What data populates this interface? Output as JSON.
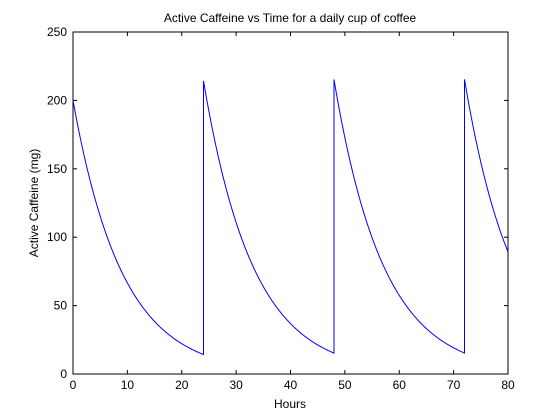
{
  "chart_data": {
    "type": "line",
    "title": "Active Caffeine vs Time for a daily cup of coffee",
    "xlabel": "Hours",
    "ylabel": "Active Caffeine (mg)",
    "xlim": [
      0,
      80
    ],
    "ylim": [
      0,
      250
    ],
    "xticks": [
      0,
      10,
      20,
      30,
      40,
      50,
      60,
      70,
      80
    ],
    "yticks": [
      0,
      50,
      100,
      150,
      200,
      250
    ],
    "grid": false,
    "legend": "none",
    "line_color": "#0000ff",
    "dose_mg": 200,
    "half_life_hours": 6.3,
    "dose_times_hours": [
      0,
      24,
      48,
      72
    ],
    "peaks": [
      {
        "x": 0,
        "y": 200
      },
      {
        "x": 24,
        "y": 211
      },
      {
        "x": 48,
        "y": 212
      },
      {
        "x": 72,
        "y": 212
      }
    ],
    "troughs": [
      {
        "x": 24,
        "y": 11
      },
      {
        "x": 48,
        "y": 12
      },
      {
        "x": 72,
        "y": 12
      }
    ],
    "end_point": {
      "x": 80,
      "y": 80
    }
  }
}
